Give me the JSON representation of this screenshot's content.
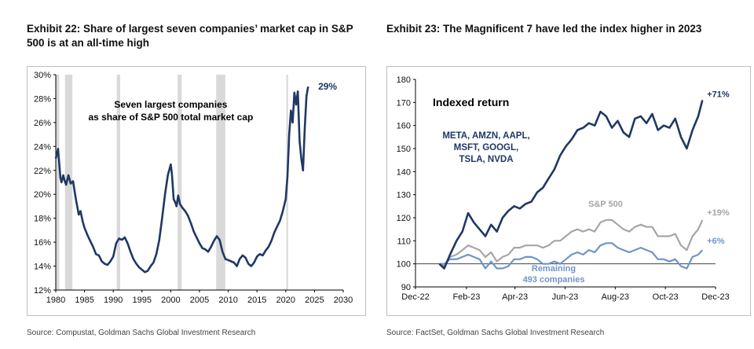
{
  "left": {
    "title": "Exhibit 22: Share of largest seven companies’ market cap in S&P 500 is at an all-time high",
    "source": "Source: Compustat, Goldman Sachs Global Investment Research"
  },
  "right": {
    "title": "Exhibit 23: The Magnificent 7 have led the index higher in 2023",
    "source": "Source: FactSet, Goldman Sachs Global Investment Research"
  },
  "colors": {
    "navy": "#1f3864",
    "gray": "#a6a6a6",
    "lightblue": "#6f95c8",
    "shade": "#d9d9d9",
    "refline": "#404040"
  },
  "chart_data": [
    {
      "type": "line",
      "title": "Exhibit 22: Share of largest seven companies’ market cap in S&P 500 is at an all-time high",
      "annotation": "Seven largest companies\nas share of S&P 500 total market cap",
      "end_label": "29%",
      "xlabel": "",
      "ylabel": "",
      "xlim": [
        1980,
        2030
      ],
      "ylim": [
        12,
        30
      ],
      "xticks": [
        1980,
        1985,
        1990,
        1995,
        2000,
        2005,
        2010,
        2015,
        2020,
        2025,
        2030
      ],
      "yticks": [
        12,
        14,
        16,
        18,
        20,
        22,
        24,
        26,
        28,
        30
      ],
      "ytick_labels": [
        "12%",
        "14%",
        "16%",
        "18%",
        "20%",
        "22%",
        "24%",
        "26%",
        "28%",
        "30%"
      ],
      "recessions": [
        [
          1980.0,
          1980.6
        ],
        [
          1981.6,
          1982.9
        ],
        [
          1990.6,
          1991.2
        ],
        [
          2001.2,
          2001.9
        ],
        [
          2007.9,
          2009.5
        ],
        [
          2020.1,
          2020.4
        ]
      ],
      "series": [
        {
          "values_x": [
            1980,
            1980.4,
            1980.8,
            1981.0,
            1981.3,
            1981.5,
            1981.8,
            1982.2,
            1982.6,
            1983.0,
            1983.5,
            1984.0,
            1984.3,
            1984.7,
            1985.0,
            1985.5,
            1986.0,
            1986.5,
            1987.0,
            1987.5,
            1988.0,
            1988.5,
            1989.0,
            1989.5,
            1990.0,
            1990.5,
            1991.0,
            1991.5,
            1992.0,
            1992.5,
            1993.0,
            1993.5,
            1994.0,
            1994.5,
            1995.0,
            1995.5,
            1996.0,
            1996.5,
            1997.0,
            1997.5,
            1998.0,
            1998.5,
            1999.0,
            1999.5,
            2000.0,
            2000.2,
            2000.5,
            2000.8,
            2001.0,
            2001.3,
            2001.6,
            2002.0,
            2002.5,
            2003.0,
            2003.5,
            2004.0,
            2004.5,
            2005.0,
            2005.5,
            2006.0,
            2006.5,
            2007.0,
            2007.5,
            2008.0,
            2008.5,
            2009.0,
            2009.5,
            2010.0,
            2010.5,
            2011.0,
            2011.5,
            2012.0,
            2012.5,
            2013.0,
            2013.5,
            2014.0,
            2014.5,
            2015.0,
            2015.5,
            2016.0,
            2016.5,
            2017.0,
            2017.5,
            2018.0,
            2018.5,
            2019.0,
            2019.5,
            2020.0,
            2020.3,
            2020.6,
            2020.9,
            2021.2,
            2021.5,
            2021.8,
            2022.1,
            2022.4,
            2022.7,
            2023.0,
            2023.3,
            2023.6,
            2023.9
          ],
          "values_y": [
            23.0,
            23.8,
            21.4,
            21.0,
            21.6,
            21.2,
            20.8,
            21.6,
            20.9,
            21.1,
            19.6,
            18.3,
            18.6,
            17.7,
            17.2,
            16.6,
            16.1,
            15.6,
            15.0,
            14.9,
            14.4,
            14.2,
            14.1,
            14.4,
            14.8,
            15.9,
            16.3,
            16.2,
            16.4,
            15.9,
            15.2,
            14.6,
            14.2,
            13.9,
            13.7,
            13.5,
            13.6,
            14.0,
            14.3,
            15.0,
            16.2,
            18.0,
            20.0,
            21.6,
            22.5,
            21.7,
            19.6,
            19.3,
            19.0,
            19.9,
            19.2,
            18.9,
            18.6,
            18.2,
            17.6,
            16.9,
            16.4,
            15.9,
            15.5,
            15.4,
            15.2,
            15.6,
            16.1,
            16.5,
            16.2,
            15.2,
            14.6,
            14.5,
            14.4,
            14.3,
            14.0,
            14.6,
            14.9,
            14.7,
            14.2,
            14.0,
            14.3,
            14.8,
            15.0,
            14.9,
            15.3,
            15.6,
            16.1,
            16.8,
            17.3,
            17.8,
            18.6,
            19.6,
            21.5,
            25.0,
            27.0,
            26.0,
            28.5,
            27.5,
            28.6,
            24.5,
            23.0,
            22.0,
            25.5,
            28.2,
            29.0
          ]
        }
      ]
    },
    {
      "type": "line",
      "title": "Exhibit 23: The Magnificent 7 have led the index higher in 2023",
      "annotation": "Indexed return",
      "xlabel": "",
      "ylabel": "",
      "x_is_date": true,
      "xlim": [
        "2022-12-01",
        "2023-12-01"
      ],
      "ylim": [
        90,
        180
      ],
      "xticks": [
        "2022-12-01",
        "2023-02-01",
        "2023-04-01",
        "2023-06-01",
        "2023-08-01",
        "2023-10-01",
        "2023-12-01"
      ],
      "xtick_labels": [
        "Dec-22",
        "Feb-23",
        "Apr-23",
        "Jun-23",
        "Aug-23",
        "Oct-23",
        "Dec-23"
      ],
      "yticks": [
        90,
        100,
        110,
        120,
        130,
        140,
        150,
        160,
        170,
        180
      ],
      "reference_line": 100,
      "series": [
        {
          "name": "META, AMZN, AAPL, MSFT, GOOGL, TSLA, NVDA",
          "end_label": "+71%",
          "color_key": "navy",
          "x": [
            "2022-12-30",
            "2023-01-05",
            "2023-01-12",
            "2023-01-20",
            "2023-01-27",
            "2023-02-03",
            "2023-02-10",
            "2023-02-17",
            "2023-02-24",
            "2023-03-03",
            "2023-03-10",
            "2023-03-17",
            "2023-03-24",
            "2023-03-31",
            "2023-04-07",
            "2023-04-14",
            "2023-04-21",
            "2023-04-28",
            "2023-05-05",
            "2023-05-12",
            "2023-05-19",
            "2023-05-26",
            "2023-06-02",
            "2023-06-09",
            "2023-06-16",
            "2023-06-23",
            "2023-06-30",
            "2023-07-07",
            "2023-07-14",
            "2023-07-21",
            "2023-07-28",
            "2023-08-04",
            "2023-08-11",
            "2023-08-18",
            "2023-08-25",
            "2023-09-01",
            "2023-09-08",
            "2023-09-15",
            "2023-09-22",
            "2023-09-29",
            "2023-10-06",
            "2023-10-13",
            "2023-10-20",
            "2023-10-27",
            "2023-11-03",
            "2023-11-10",
            "2023-11-15"
          ],
          "y": [
            100,
            98,
            104,
            110,
            114,
            122,
            118,
            115,
            112,
            117,
            114,
            120,
            123,
            125,
            124,
            126,
            127,
            131,
            133,
            137,
            141,
            147,
            151,
            154,
            158,
            159,
            161,
            160,
            166,
            164,
            159,
            162,
            157,
            155,
            163,
            164,
            161,
            165,
            158,
            160,
            159,
            163,
            155,
            150,
            158,
            164,
            171
          ]
        },
        {
          "name": "S&P 500",
          "end_label": "+19%",
          "color_key": "gray",
          "x": [
            "2022-12-30",
            "2023-01-05",
            "2023-01-12",
            "2023-01-20",
            "2023-01-27",
            "2023-02-03",
            "2023-02-10",
            "2023-02-17",
            "2023-02-24",
            "2023-03-03",
            "2023-03-10",
            "2023-03-17",
            "2023-03-24",
            "2023-03-31",
            "2023-04-07",
            "2023-04-14",
            "2023-04-21",
            "2023-04-28",
            "2023-05-05",
            "2023-05-12",
            "2023-05-19",
            "2023-05-26",
            "2023-06-02",
            "2023-06-09",
            "2023-06-16",
            "2023-06-23",
            "2023-06-30",
            "2023-07-07",
            "2023-07-14",
            "2023-07-21",
            "2023-07-28",
            "2023-08-04",
            "2023-08-11",
            "2023-08-18",
            "2023-08-25",
            "2023-09-01",
            "2023-09-08",
            "2023-09-15",
            "2023-09-22",
            "2023-09-29",
            "2023-10-06",
            "2023-10-13",
            "2023-10-20",
            "2023-10-27",
            "2023-11-03",
            "2023-11-10",
            "2023-11-15"
          ],
          "y": [
            100,
            99,
            103,
            104,
            106,
            108,
            107,
            106,
            103,
            105,
            101,
            103,
            104,
            107,
            107,
            108,
            108,
            108,
            107,
            108,
            110,
            110,
            112,
            114,
            115,
            114,
            115,
            114,
            118,
            119,
            119,
            117,
            115,
            114,
            116,
            117,
            116,
            116,
            112,
            112,
            112,
            113,
            108,
            106,
            112,
            115,
            119
          ]
        },
        {
          "name": "Remaining 493 companies",
          "end_label": "+6%",
          "color_key": "lightblue",
          "x": [
            "2022-12-30",
            "2023-01-05",
            "2023-01-12",
            "2023-01-20",
            "2023-01-27",
            "2023-02-03",
            "2023-02-10",
            "2023-02-17",
            "2023-02-24",
            "2023-03-03",
            "2023-03-10",
            "2023-03-17",
            "2023-03-24",
            "2023-03-31",
            "2023-04-07",
            "2023-04-14",
            "2023-04-21",
            "2023-04-28",
            "2023-05-05",
            "2023-05-12",
            "2023-05-19",
            "2023-05-26",
            "2023-06-02",
            "2023-06-09",
            "2023-06-16",
            "2023-06-23",
            "2023-06-30",
            "2023-07-07",
            "2023-07-14",
            "2023-07-21",
            "2023-07-28",
            "2023-08-04",
            "2023-08-11",
            "2023-08-18",
            "2023-08-25",
            "2023-09-01",
            "2023-09-08",
            "2023-09-15",
            "2023-09-22",
            "2023-09-29",
            "2023-10-06",
            "2023-10-13",
            "2023-10-20",
            "2023-10-27",
            "2023-11-03",
            "2023-11-10",
            "2023-11-15"
          ],
          "y": [
            100,
            100,
            102,
            102,
            103,
            104,
            103,
            102,
            98,
            101,
            98,
            98,
            99,
            102,
            102,
            103,
            103,
            102,
            100,
            100,
            101,
            100,
            102,
            104,
            105,
            104,
            106,
            105,
            108,
            109,
            109,
            107,
            106,
            105,
            106,
            107,
            106,
            105,
            102,
            102,
            101,
            102,
            99,
            98,
            103,
            104,
            106
          ]
        }
      ]
    }
  ]
}
